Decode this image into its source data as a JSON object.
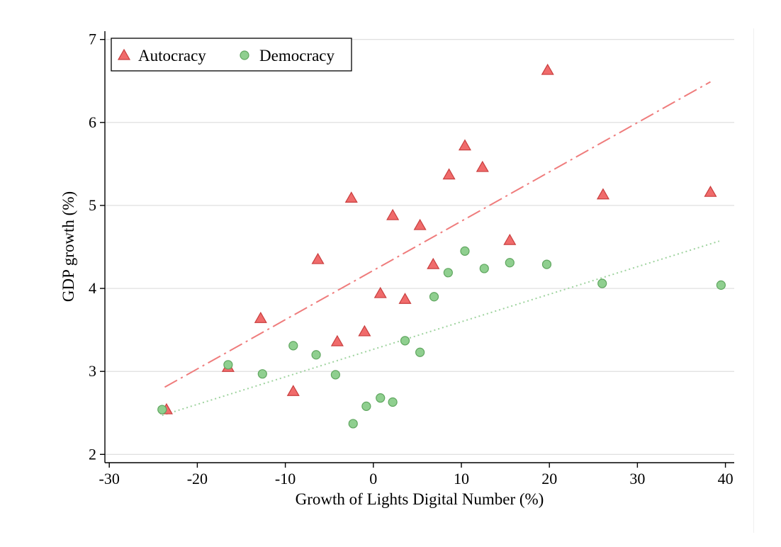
{
  "chart_data": {
    "type": "scatter",
    "title": "",
    "xlabel": "Growth of Lights Digital Number (%)",
    "ylabel": "GDP growth (%)",
    "xlim": [
      -30.5,
      41
    ],
    "ylim": [
      1.9,
      7.1
    ],
    "x_ticks": [
      -30,
      -20,
      -10,
      0,
      10,
      20,
      30,
      40
    ],
    "y_ticks": [
      2,
      3,
      4,
      5,
      6,
      7
    ],
    "x_tick_labels": [
      "-30",
      "-20",
      "-10",
      "0",
      "10",
      "20",
      "30",
      "40"
    ],
    "y_tick_labels": [
      "2",
      "3",
      "4",
      "5",
      "6",
      "7"
    ],
    "grid": "horizontal",
    "legend_position": "top-left",
    "series": [
      {
        "name": "Autocracy",
        "marker": "triangle",
        "color": "#f06b6b",
        "points": [
          [
            -23.5,
            2.54
          ],
          [
            -16.5,
            3.05
          ],
          [
            -12.8,
            3.64
          ],
          [
            -9.1,
            2.76
          ],
          [
            -6.3,
            4.35
          ],
          [
            -4.1,
            3.36
          ],
          [
            -2.5,
            5.09
          ],
          [
            -1.0,
            3.48
          ],
          [
            0.8,
            3.94
          ],
          [
            2.2,
            4.88
          ],
          [
            3.6,
            3.87
          ],
          [
            5.3,
            4.76
          ],
          [
            6.8,
            4.29
          ],
          [
            8.6,
            5.37
          ],
          [
            10.4,
            5.72
          ],
          [
            12.4,
            5.46
          ],
          [
            15.5,
            4.58
          ],
          [
            19.8,
            6.63
          ],
          [
            26.1,
            5.13
          ],
          [
            38.3,
            5.16
          ]
        ],
        "fit": {
          "style": "long-dash-dot",
          "x": [
            -23.7,
            38.3
          ],
          "y": [
            2.81,
            6.49
          ]
        }
      },
      {
        "name": "Democracy",
        "marker": "circle",
        "color": "#8fcf8f",
        "points": [
          [
            -24.0,
            2.54
          ],
          [
            -16.5,
            3.08
          ],
          [
            -12.6,
            2.97
          ],
          [
            -9.1,
            3.31
          ],
          [
            -6.5,
            3.2
          ],
          [
            -4.3,
            2.96
          ],
          [
            -2.3,
            2.37
          ],
          [
            -0.8,
            2.58
          ],
          [
            0.8,
            2.68
          ],
          [
            2.2,
            2.63
          ],
          [
            3.6,
            3.37
          ],
          [
            5.3,
            3.23
          ],
          [
            6.9,
            3.9
          ],
          [
            8.5,
            4.19
          ],
          [
            10.4,
            4.45
          ],
          [
            12.6,
            4.24
          ],
          [
            15.5,
            4.31
          ],
          [
            19.7,
            4.29
          ],
          [
            26.0,
            4.06
          ],
          [
            39.5,
            4.04
          ]
        ],
        "fit": {
          "style": "dotted",
          "x": [
            -24.0,
            39.3
          ],
          "y": [
            2.47,
            4.57
          ]
        }
      }
    ]
  }
}
